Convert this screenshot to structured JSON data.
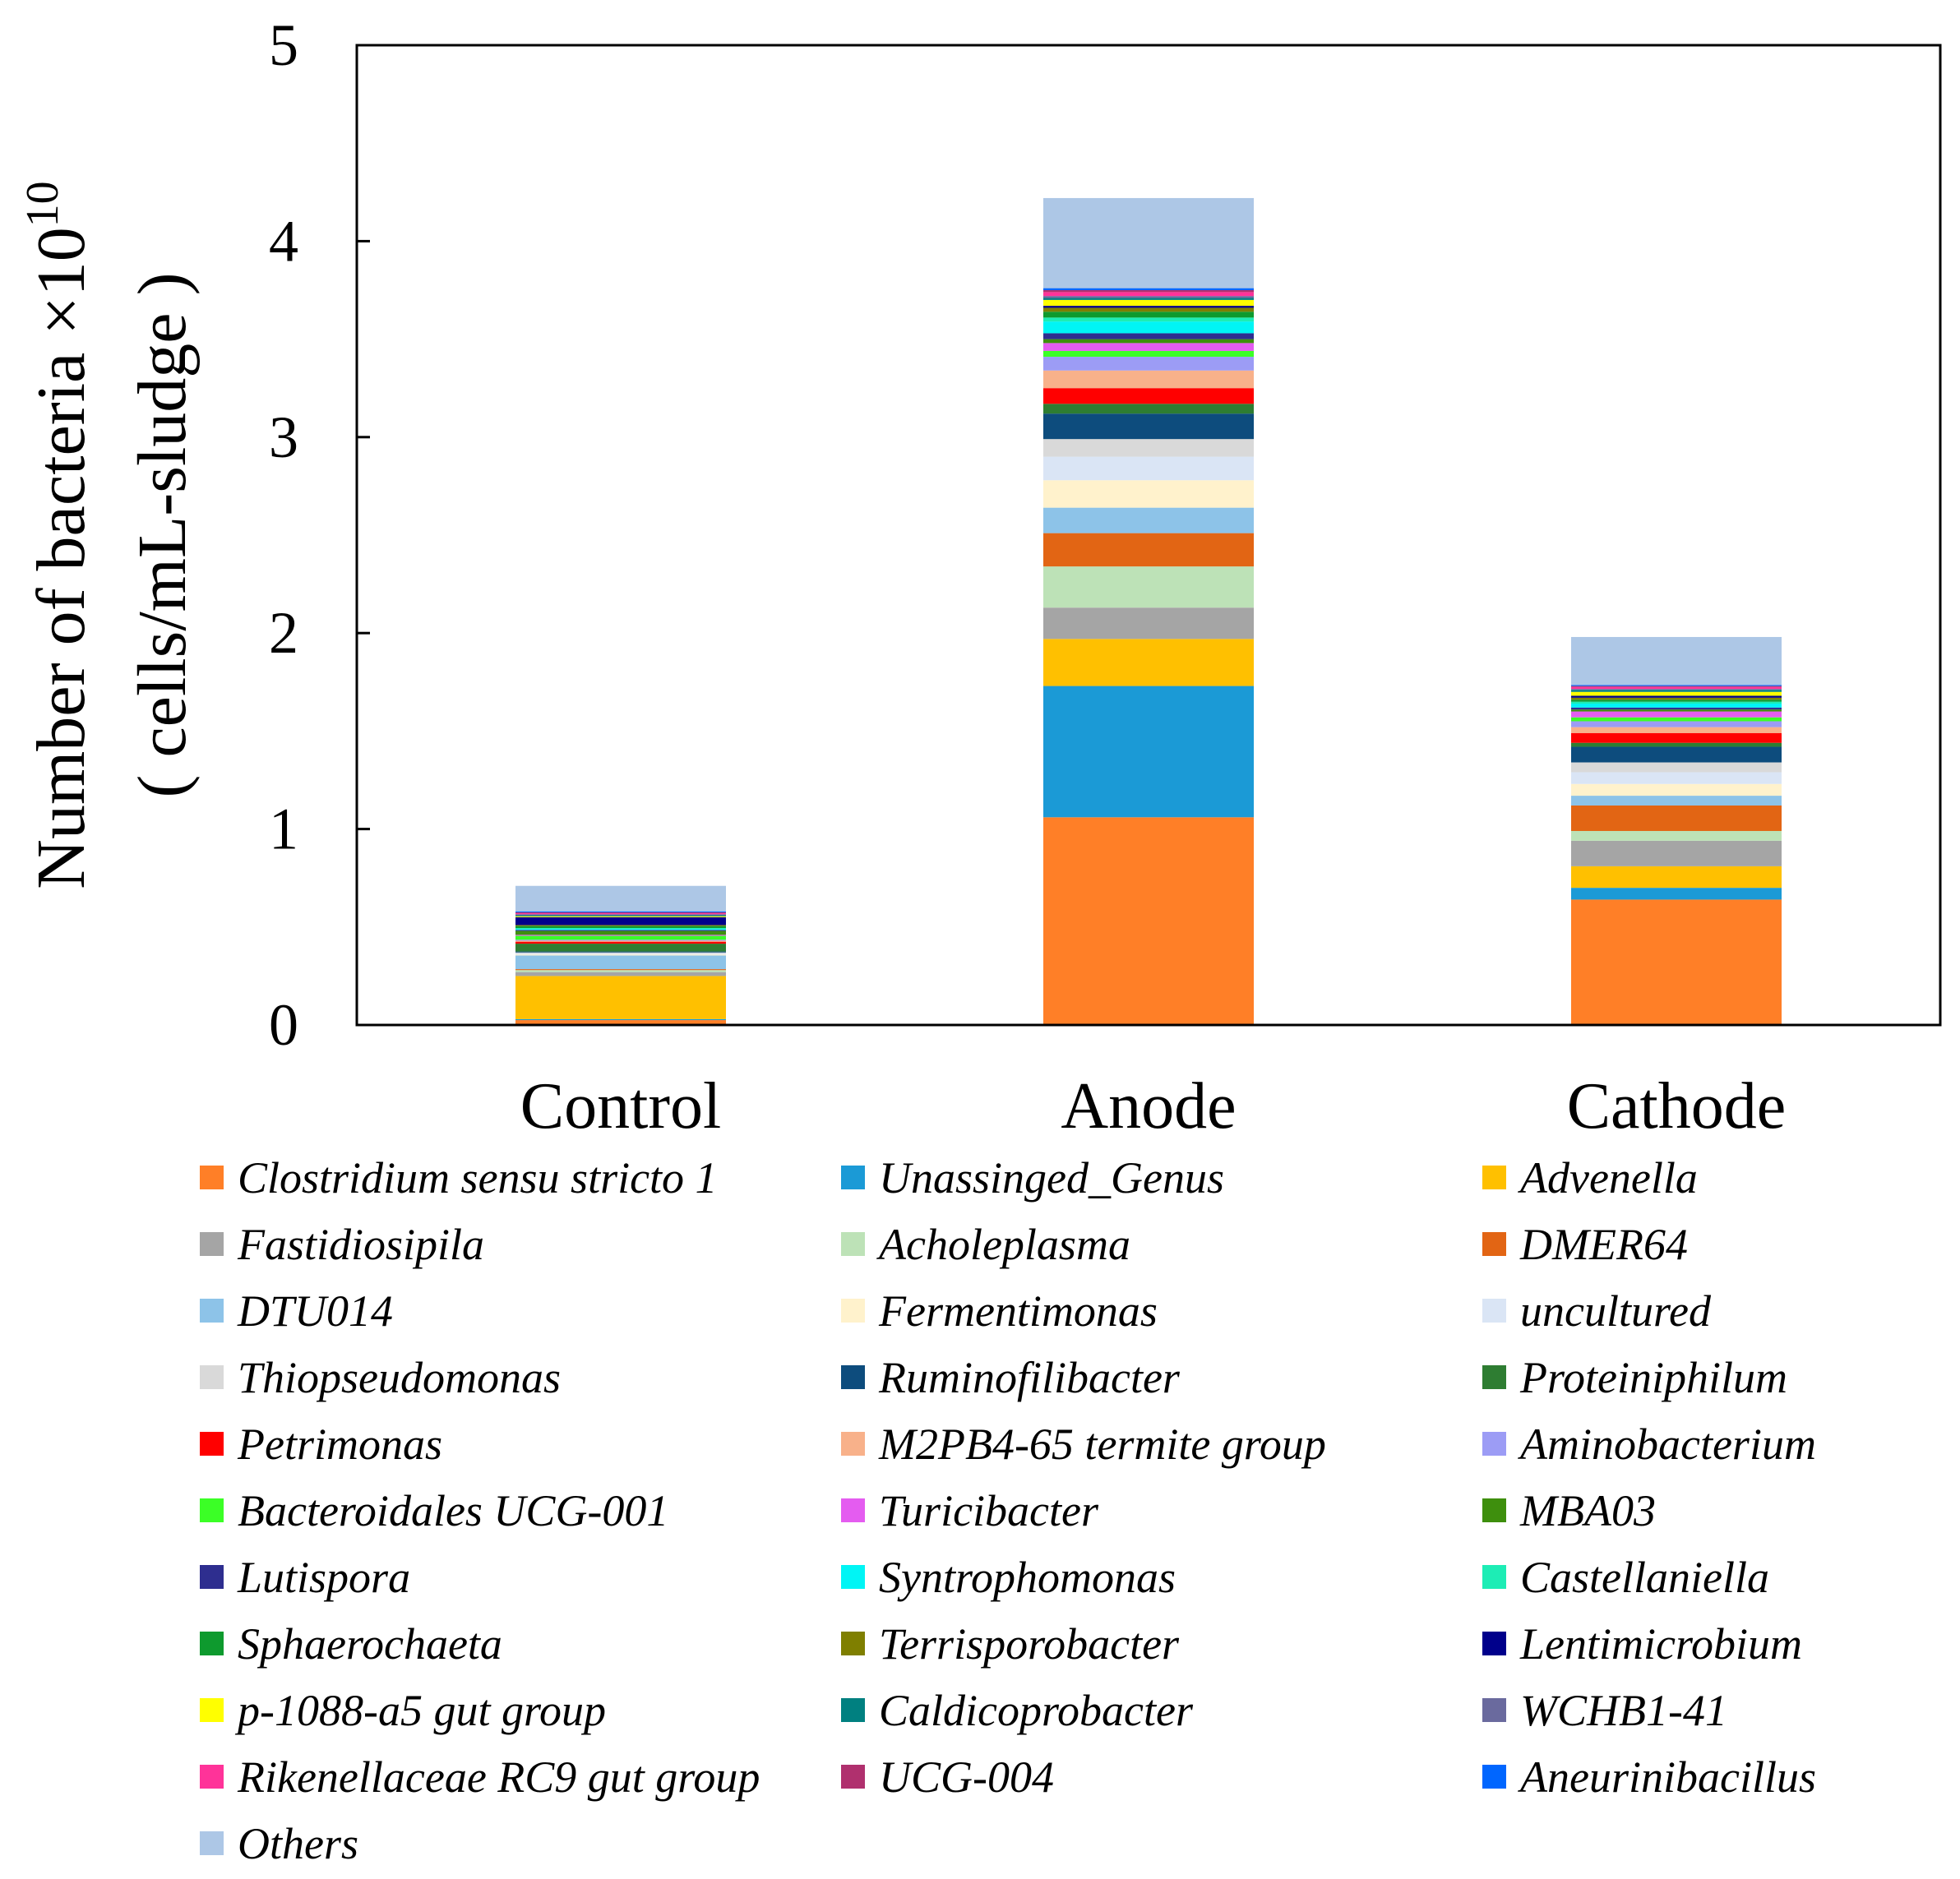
{
  "chart_data": {
    "type": "bar",
    "stacked": true,
    "categories": [
      "Control",
      "Anode",
      "Cathode"
    ],
    "ylabel_line1": "Number of bacteria  ×10",
    "ylabel_exponent": "10",
    "ylabel_line2": "( cells/mL-sludge )",
    "ylim": [
      0,
      5
    ],
    "yticks": [
      "0",
      "1",
      "2",
      "3",
      "4",
      "5"
    ],
    "grid": false,
    "legend_position": "bottom",
    "series": [
      {
        "name": "Clostridium sensu stricto 1",
        "color": "#FF7F27",
        "values": [
          0.025,
          1.06,
          0.64
        ]
      },
      {
        "name": "Unassinged_Genus",
        "color": "#1B9AD6",
        "values": [
          0.005,
          0.67,
          0.06
        ]
      },
      {
        "name": "Advenella",
        "color": "#FFC000",
        "values": [
          0.22,
          0.24,
          0.11
        ]
      },
      {
        "name": "Fastidiosipila",
        "color": "#A5A5A5",
        "values": [
          0.02,
          0.16,
          0.13
        ]
      },
      {
        "name": "Acholeplasma",
        "color": "#BDE2B7",
        "values": [
          0.01,
          0.21,
          0.05
        ]
      },
      {
        "name": "DMER64",
        "color": "#E26514",
        "values": [
          0.005,
          0.17,
          0.13
        ]
      },
      {
        "name": "DTU014",
        "color": "#8DC3E8",
        "values": [
          0.07,
          0.13,
          0.05
        ]
      },
      {
        "name": "Fermentimonas",
        "color": "#FFF2CC",
        "values": [
          0.005,
          0.14,
          0.06
        ]
      },
      {
        "name": "uncultured",
        "color": "#DAE5F5",
        "values": [
          0.005,
          0.12,
          0.06
        ]
      },
      {
        "name": "Thiopseudomonas",
        "color": "#D9D9D9",
        "values": [
          0.005,
          0.09,
          0.05
        ]
      },
      {
        "name": "Ruminofilibacter",
        "color": "#0D4C7D",
        "values": [
          0.005,
          0.13,
          0.08
        ]
      },
      {
        "name": "Proteiniphilum",
        "color": "#2E7D32",
        "values": [
          0.04,
          0.05,
          0.02
        ]
      },
      {
        "name": "Petrimonas",
        "color": "#FF0000",
        "values": [
          0.01,
          0.08,
          0.05
        ]
      },
      {
        "name": "M2PB4-65 termite group",
        "color": "#F8B18A",
        "values": [
          0.005,
          0.09,
          0.03
        ]
      },
      {
        "name": "Aminobacterium",
        "color": "#9C9CF5",
        "values": [
          0.005,
          0.07,
          0.03
        ]
      },
      {
        "name": "Bacteroidales UCG-001",
        "color": "#3BFF26",
        "values": [
          0.02,
          0.03,
          0.02
        ]
      },
      {
        "name": "Turicibacter",
        "color": "#E45CF0",
        "values": [
          0.005,
          0.04,
          0.03
        ]
      },
      {
        "name": "MBA03",
        "color": "#3E8F0D",
        "values": [
          0.02,
          0.02,
          0.01
        ]
      },
      {
        "name": "Lutispora",
        "color": "#2E2E8F",
        "values": [
          0.005,
          0.03,
          0.01
        ]
      },
      {
        "name": "Syntrophomonas",
        "color": "#00F5F5",
        "values": [
          0.005,
          0.06,
          0.02
        ]
      },
      {
        "name": "Castellaniella",
        "color": "#1DEDB5",
        "values": [
          0.005,
          0.02,
          0.01
        ]
      },
      {
        "name": "Sphaerochaeta",
        "color": "#0E9A2E",
        "values": [
          0.01,
          0.03,
          0.01
        ]
      },
      {
        "name": "Terrisporobacter",
        "color": "#7F7F00",
        "values": [
          0.005,
          0.02,
          0.01
        ]
      },
      {
        "name": "Lentimicrobium",
        "color": "#00008B",
        "values": [
          0.04,
          0.01,
          0.01
        ]
      },
      {
        "name": "p-1088-a5 gut group",
        "color": "#FFFF00",
        "values": [
          0.005,
          0.03,
          0.02
        ]
      },
      {
        "name": "Caldicoprobacter",
        "color": "#008080",
        "values": [
          0.005,
          0.01,
          0.01
        ]
      },
      {
        "name": "WCHB1-41",
        "color": "#6A6A9E",
        "values": [
          0.005,
          0.01,
          0.005
        ]
      },
      {
        "name": "Rikenellaceae RC9 gut group",
        "color": "#FF3399",
        "values": [
          0.005,
          0.02,
          0.01
        ]
      },
      {
        "name": "UCG-004",
        "color": "#B0306E",
        "values": [
          0.005,
          0.01,
          0.005
        ]
      },
      {
        "name": "Aneurinibacillus",
        "color": "#0066FF",
        "values": [
          0.005,
          0.01,
          0.005
        ]
      },
      {
        "name": "Others",
        "color": "#ADC7E6",
        "values": [
          0.13,
          0.46,
          0.245
        ]
      }
    ]
  }
}
